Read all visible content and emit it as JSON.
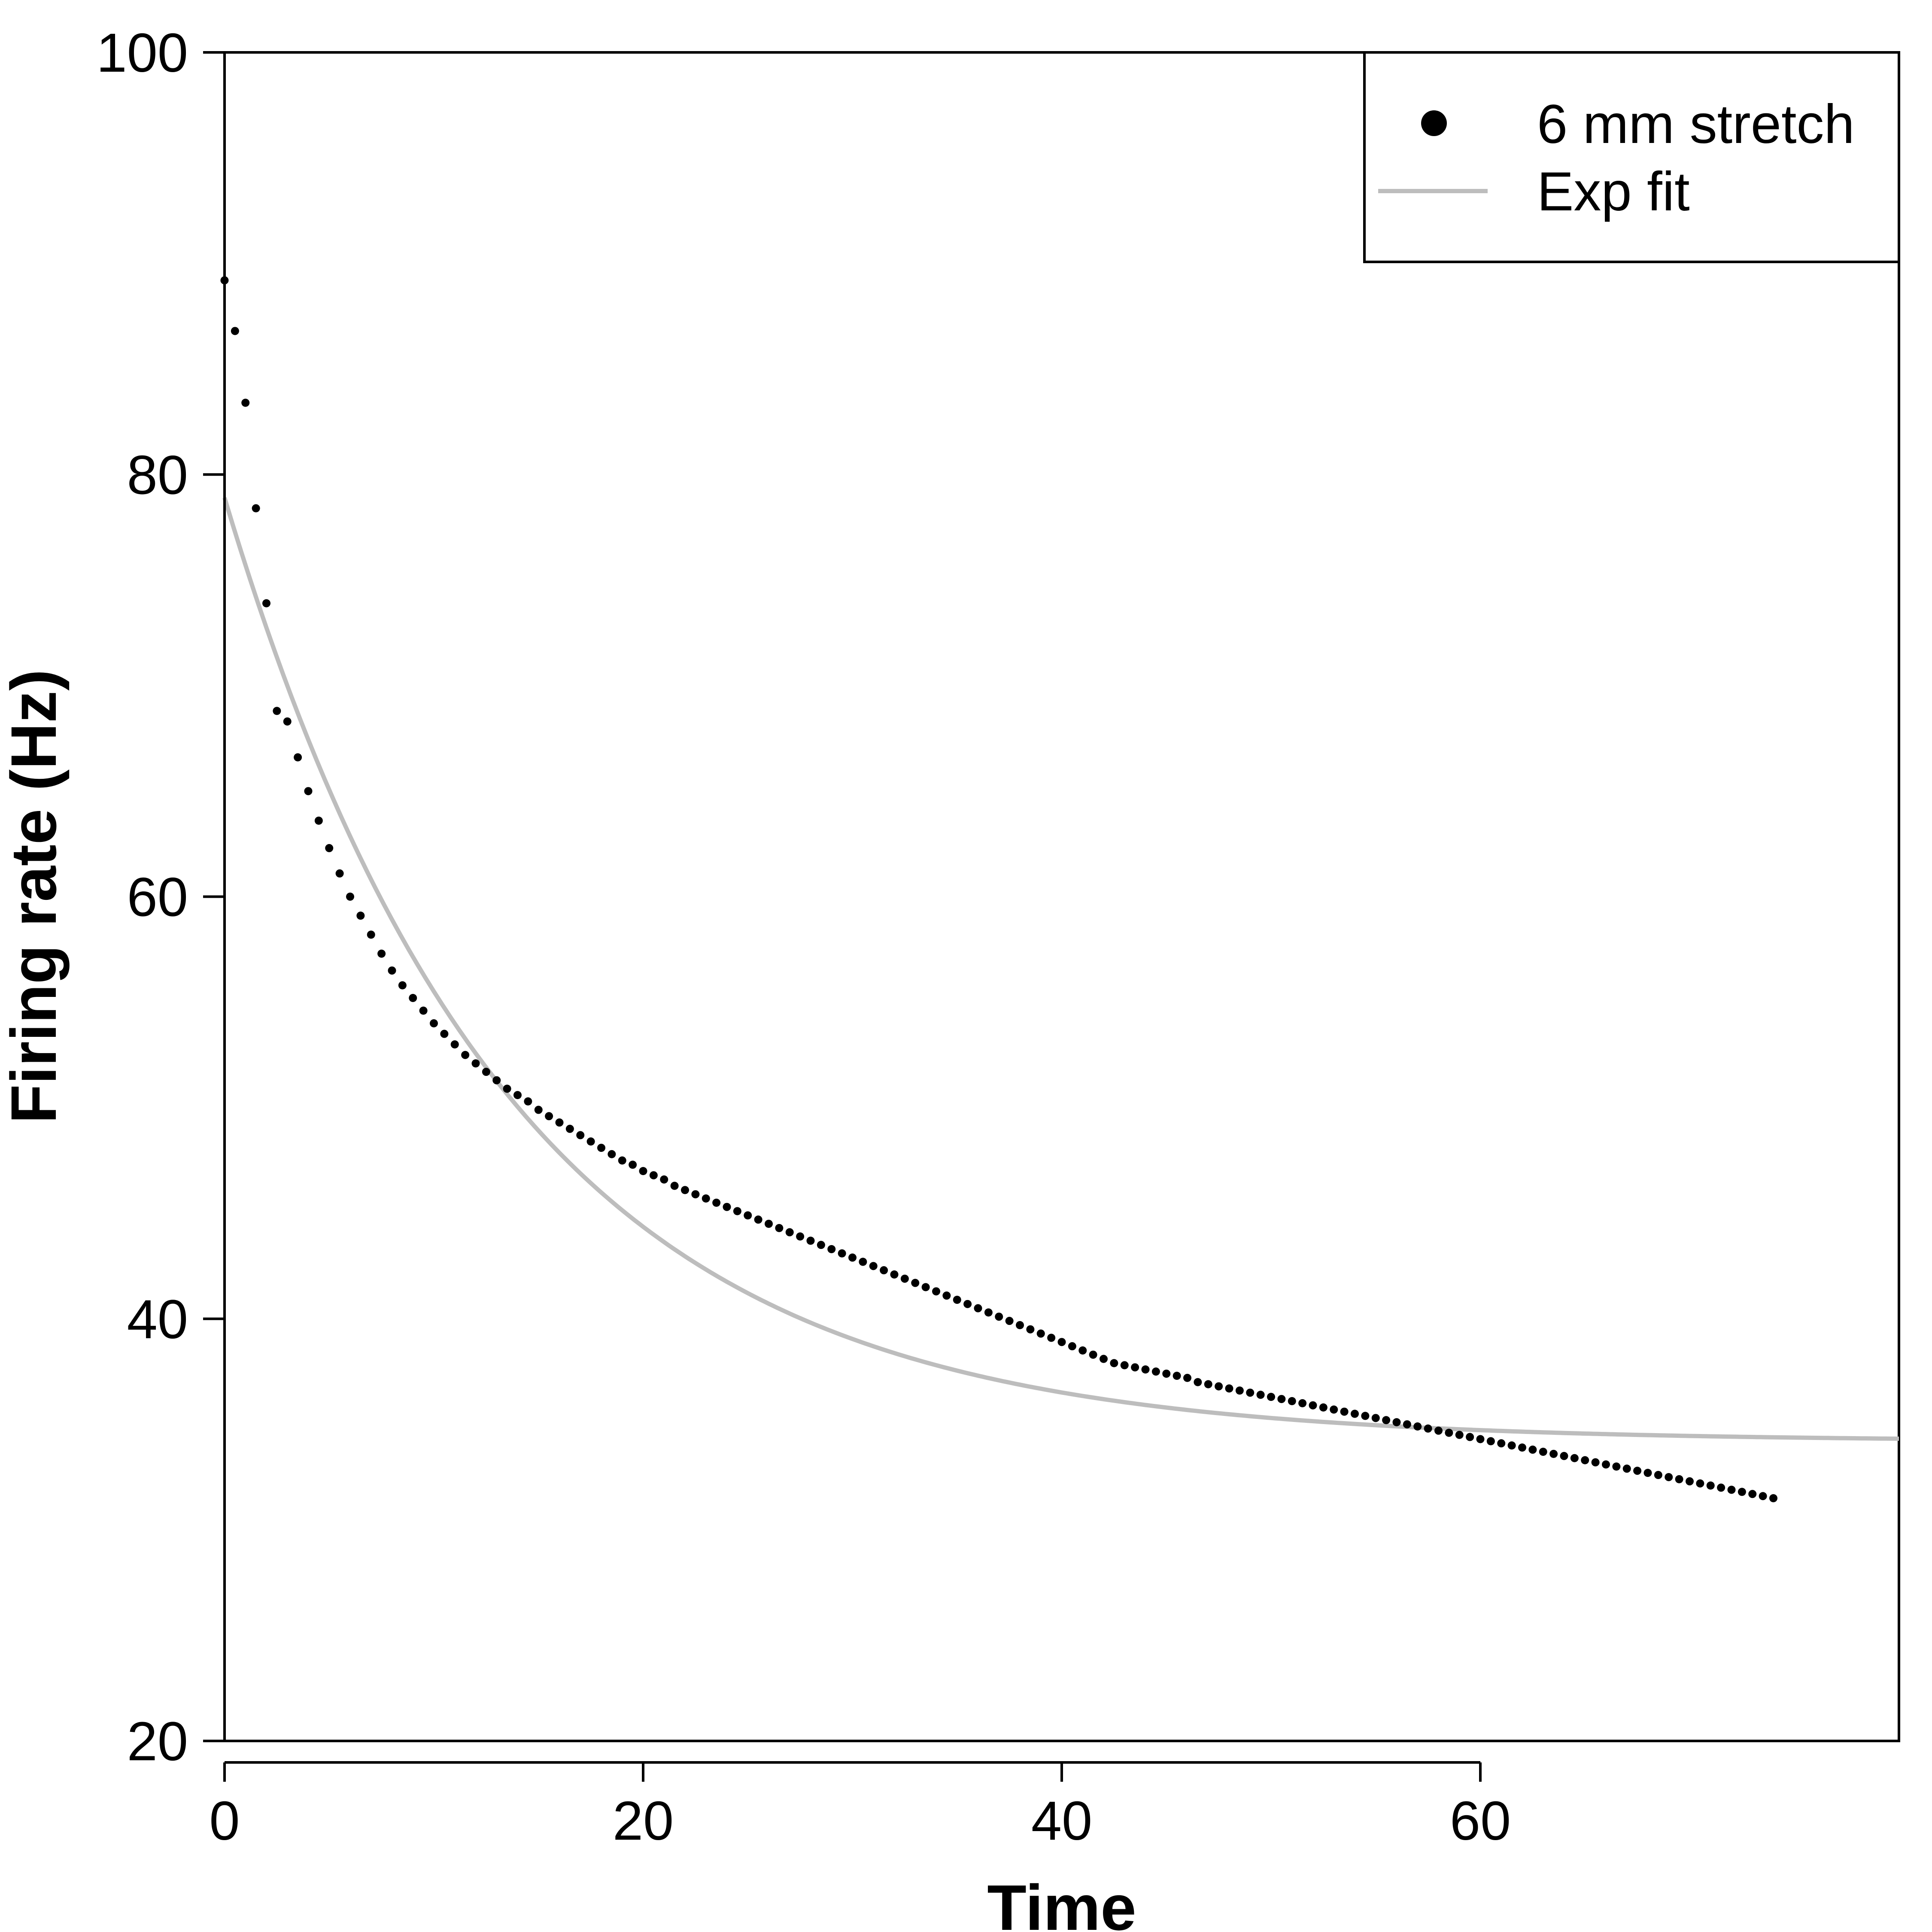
{
  "chart_data": {
    "type": "scatter",
    "title": "",
    "xlabel": "Time",
    "ylabel": "Firing rate (Hz)",
    "xlim": [
      0,
      80
    ],
    "ylim": [
      20,
      100
    ],
    "x_ticks": [
      0,
      20,
      40,
      60
    ],
    "y_ticks": [
      20,
      40,
      60,
      80,
      100
    ],
    "grid": false,
    "legend": {
      "position": "top-right",
      "entries": [
        {
          "label": "6 mm stretch",
          "marker": "dot",
          "color": "#000000"
        },
        {
          "label": "Exp fit",
          "marker": "line",
          "color": "#bdbdbd"
        }
      ]
    },
    "series": [
      {
        "name": "6 mm stretch",
        "kind": "points",
        "color": "#000000",
        "x": [
          0,
          0.5,
          1,
          1.5,
          2,
          2.5,
          3,
          3.5,
          4,
          4.5,
          5,
          5.5,
          6,
          6.5,
          7,
          7.5,
          8,
          8.5,
          9,
          9.5,
          10,
          10.5,
          11,
          11.5,
          12,
          12.5,
          13,
          13.5,
          14,
          14.5,
          15,
          15.5,
          16,
          16.5,
          17,
          17.5,
          18,
          18.5,
          19,
          19.5,
          20,
          20.5,
          21,
          21.5,
          22,
          22.5,
          23,
          23.5,
          24,
          24.5,
          25,
          25.5,
          26,
          26.5,
          27,
          27.5,
          28,
          28.5,
          29,
          29.5,
          30,
          30.5,
          31,
          31.5,
          32,
          32.5,
          33,
          33.5,
          34,
          34.5,
          35,
          35.5,
          36,
          36.5,
          37,
          37.5,
          38,
          38.5,
          39,
          39.5,
          40,
          40.5,
          41,
          41.5,
          42,
          42.5,
          43,
          43.5,
          44,
          44.5,
          45,
          45.5,
          46,
          46.5,
          47,
          47.5,
          48,
          48.5,
          49,
          49.5,
          50,
          50.5,
          51,
          51.5,
          52,
          52.5,
          53,
          53.5,
          54,
          54.5,
          55,
          55.5,
          56,
          56.5,
          57,
          57.5,
          58,
          58.5,
          59,
          59.5,
          60,
          60.5,
          61,
          61.5,
          62,
          62.5,
          63,
          63.5,
          64,
          64.5,
          65,
          65.5,
          66,
          66.5,
          67,
          67.5,
          68,
          68.5,
          69,
          69.5,
          70,
          70.5,
          71,
          71.5,
          72,
          72.5,
          73,
          73.5,
          74
        ],
        "y": [
          89.2,
          86.8,
          83.4,
          78.4,
          73.9,
          68.8,
          68.3,
          66.6,
          65.0,
          63.6,
          62.3,
          61.1,
          60.0,
          59.1,
          58.2,
          57.3,
          56.5,
          55.8,
          55.2,
          54.6,
          54.0,
          53.5,
          53.0,
          52.5,
          52.1,
          51.7,
          51.3,
          50.9,
          50.6,
          50.3,
          49.9,
          49.6,
          49.3,
          49.0,
          48.7,
          48.4,
          48.1,
          47.8,
          47.5,
          47.3,
          47.0,
          46.8,
          46.6,
          46.3,
          46.1,
          45.9,
          45.7,
          45.5,
          45.3,
          45.1,
          44.9,
          44.7,
          44.5,
          44.3,
          44.1,
          43.9,
          43.7,
          43.5,
          43.3,
          43.1,
          42.9,
          42.7,
          42.5,
          42.3,
          42.1,
          41.9,
          41.7,
          41.5,
          41.3,
          41.1,
          40.9,
          40.7,
          40.5,
          40.3,
          40.1,
          39.9,
          39.7,
          39.5,
          39.3,
          39.1,
          38.9,
          38.7,
          38.5,
          38.3,
          38.1,
          37.9,
          37.8,
          37.7,
          37.6,
          37.5,
          37.4,
          37.3,
          37.2,
          37.0,
          36.9,
          36.8,
          36.7,
          36.6,
          36.5,
          36.4,
          36.3,
          36.2,
          36.1,
          36.0,
          35.9,
          35.8,
          35.7,
          35.6,
          35.5,
          35.4,
          35.3,
          35.2,
          35.1,
          35.0,
          34.9,
          34.8,
          34.7,
          34.6,
          34.5,
          34.4,
          34.3,
          34.2,
          34.1,
          34.0,
          33.9,
          33.8,
          33.7,
          33.6,
          33.5,
          33.4,
          33.3,
          33.2,
          33.1,
          33.0,
          32.9,
          32.8,
          32.7,
          32.6,
          32.5,
          32.4,
          32.3,
          32.2,
          32.1,
          32.0,
          31.9,
          31.8,
          31.7,
          31.6,
          31.5
        ]
      },
      {
        "name": "Exp fit",
        "kind": "curve",
        "color": "#bdbdbd",
        "model": "y = a + b * exp(-x / tau)",
        "params": {
          "a": 34.2,
          "b": 44.7,
          "tau": 13.5
        },
        "x_range": [
          0,
          80
        ]
      }
    ]
  }
}
